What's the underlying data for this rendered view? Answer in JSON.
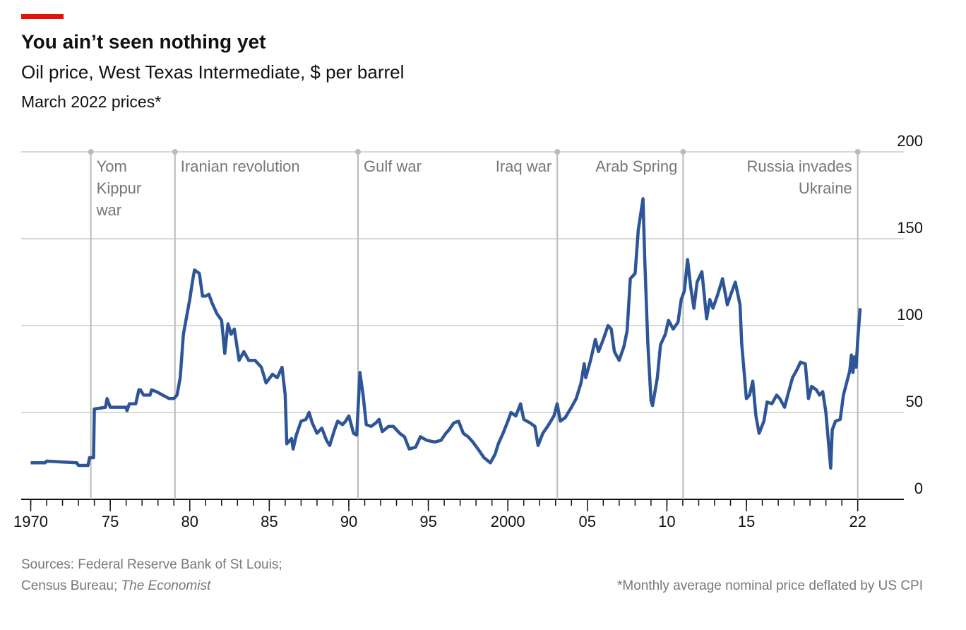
{
  "chart_data": {
    "type": "line",
    "title": "You ain’t seen nothing yet",
    "subtitle": "Oil price, West Texas Intermediate, $ per barrel",
    "note": "March 2022 prices*",
    "source_line1": "Sources: Federal Reserve Bank of St Louis;",
    "source_line2": "Census Bureau; ",
    "source_italic": "The Economist",
    "footnote": "*Monthly average nominal price deflated by US CPI",
    "color": "#2e5597",
    "x": [
      1970.0,
      1970.9,
      1971.0,
      1972.9,
      1973.0,
      1973.6,
      1973.7,
      1973.95,
      1974.0,
      1974.7,
      1974.8,
      1975.0,
      1976.0,
      1976.05,
      1976.2,
      1976.6,
      1976.8,
      1976.9,
      1977.1,
      1977.5,
      1977.6,
      1977.9,
      1978.7,
      1979.0,
      1979.2,
      1979.4,
      1979.6,
      1979.8,
      1980.0,
      1980.2,
      1980.3,
      1980.6,
      1980.8,
      1981.0,
      1981.2,
      1981.4,
      1981.7,
      1982.0,
      1982.2,
      1982.4,
      1982.6,
      1982.8,
      1983.1,
      1983.4,
      1983.7,
      1984.1,
      1984.5,
      1984.8,
      1985.2,
      1985.5,
      1985.8,
      1986.0,
      1986.1,
      1986.4,
      1986.5,
      1986.7,
      1987.0,
      1987.3,
      1987.5,
      1987.7,
      1988.0,
      1988.3,
      1988.6,
      1988.8,
      1989.1,
      1989.3,
      1989.6,
      1989.8,
      1990.0,
      1990.3,
      1990.5,
      1990.7,
      1990.9,
      1991.1,
      1991.4,
      1991.7,
      1991.9,
      1992.1,
      1992.5,
      1992.8,
      1993.2,
      1993.5,
      1993.8,
      1994.2,
      1994.5,
      1994.9,
      1995.4,
      1995.8,
      1996.1,
      1996.3,
      1996.6,
      1996.9,
      1997.2,
      1997.5,
      1997.8,
      1998.2,
      1998.5,
      1998.9,
      1999.2,
      1999.4,
      1999.7,
      2000.0,
      2000.2,
      2000.5,
      2000.8,
      2001.0,
      2001.4,
      2001.7,
      2001.9,
      2002.2,
      2002.5,
      2002.7,
      2002.9,
      2003.1,
      2003.3,
      2003.6,
      2004.0,
      2004.3,
      2004.6,
      2004.8,
      2004.9,
      2005.2,
      2005.5,
      2005.7,
      2006.0,
      2006.3,
      2006.5,
      2006.7,
      2007.0,
      2007.3,
      2007.5,
      2007.7,
      2008.0,
      2008.2,
      2008.5,
      2008.6,
      2008.8,
      2009.0,
      2009.1,
      2009.4,
      2009.6,
      2009.9,
      2010.1,
      2010.4,
      2010.7,
      2010.9,
      2011.1,
      2011.3,
      2011.5,
      2011.7,
      2011.9,
      2012.2,
      2012.5,
      2012.7,
      2012.9,
      2013.2,
      2013.5,
      2013.8,
      2014.1,
      2014.3,
      2014.6,
      2014.7,
      2015.0,
      2015.2,
      2015.4,
      2015.6,
      2015.8,
      2016.1,
      2016.3,
      2016.6,
      2016.9,
      2017.1,
      2017.4,
      2017.6,
      2017.9,
      2018.2,
      2018.4,
      2018.7,
      2018.9,
      2019.1,
      2019.4,
      2019.6,
      2019.8,
      2020.0,
      2020.3,
      2020.4,
      2020.6,
      2020.9,
      2021.1,
      2021.3,
      2021.5,
      2021.6,
      2021.7,
      2021.8,
      2021.9,
      2022.0,
      2022.15
    ],
    "values": [
      21,
      21,
      22,
      21,
      19.5,
      19.5,
      24,
      24,
      52,
      53,
      58,
      53,
      53,
      51,
      55,
      55,
      63,
      63,
      60,
      60,
      63,
      62,
      58,
      58,
      60,
      70,
      95,
      105,
      115,
      127,
      132,
      130,
      117,
      117,
      118,
      113,
      107,
      103,
      84,
      101,
      95,
      98,
      80,
      85,
      80,
      80,
      76,
      67,
      72,
      70,
      76,
      60,
      32,
      35,
      29,
      37,
      45,
      46,
      50,
      44,
      38,
      41,
      34,
      31,
      40,
      45,
      43,
      45,
      48,
      38,
      37,
      73,
      60,
      43,
      42,
      44,
      46,
      39,
      42,
      42,
      38,
      36,
      29,
      30,
      36,
      34,
      33,
      34,
      38,
      40,
      44,
      45,
      38,
      36,
      33,
      28,
      24,
      21,
      26,
      32,
      38,
      45,
      50,
      48,
      55,
      46,
      44,
      42,
      31,
      38,
      42,
      45,
      48,
      55,
      45,
      47,
      53,
      58,
      67,
      78,
      70,
      80,
      92,
      85,
      92,
      100,
      98,
      85,
      80,
      88,
      97,
      127,
      130,
      155,
      173,
      140,
      90,
      57,
      54,
      70,
      89,
      95,
      103,
      98,
      102,
      115,
      120,
      138,
      122,
      110,
      125,
      131,
      104,
      115,
      110,
      118,
      127,
      112,
      120,
      125,
      112,
      90,
      58,
      60,
      68,
      48,
      38,
      45,
      56,
      55,
      60,
      58,
      53,
      60,
      70,
      75,
      79,
      78,
      58,
      65,
      63,
      60,
      62,
      50,
      18,
      40,
      45,
      46,
      60,
      67,
      74,
      83,
      73,
      82,
      76,
      92,
      110
    ],
    "xlim": [
      1969.4,
      2024.9
    ],
    "ylim": [
      0,
      200
    ],
    "yticks": [
      0,
      50,
      100,
      150,
      200
    ],
    "xticks": [
      1970,
      {
        "value": 1975,
        "label": "75"
      },
      {
        "value": 1980,
        "label": "80"
      },
      {
        "value": 1985,
        "label": "85"
      },
      {
        "value": 1990,
        "label": "90"
      },
      {
        "value": 1995,
        "label": "95"
      },
      2000,
      {
        "value": 2005,
        "label": "05"
      },
      {
        "value": 2010,
        "label": "10"
      },
      {
        "value": 2015,
        "label": "15"
      },
      {
        "value": 2022,
        "label": "22"
      }
    ],
    "xminor_ticks": [
      1970,
      1971,
      1972,
      1973,
      1974,
      1975,
      1976,
      1977,
      1978,
      1979,
      1980,
      1981,
      1982,
      1983,
      1984,
      1985,
      1986,
      1987,
      1988,
      1989,
      1990,
      1991,
      1992,
      1993,
      1994,
      1995,
      1996,
      1997,
      1998,
      1999,
      2000,
      2001,
      2002,
      2003,
      2004,
      2005,
      2006,
      2007,
      2008,
      2009,
      2010,
      2011,
      2012,
      2013,
      2014,
      2015,
      2016,
      2017,
      2018,
      2019,
      2020,
      2021,
      2022
    ],
    "grid": true,
    "annotations": [
      {
        "x": 1973.78,
        "text": [
          "Yom",
          "Kippur",
          "war"
        ],
        "align": "right"
      },
      {
        "x": 1979.07,
        "text": [
          "Iranian revolution"
        ],
        "align": "right"
      },
      {
        "x": 1990.58,
        "text": [
          "Gulf war"
        ],
        "align": "right"
      },
      {
        "x": 2003.11,
        "text": [
          "Iraq war"
        ],
        "align": "left"
      },
      {
        "x": 2011.02,
        "text": [
          "Arab Spring"
        ],
        "align": "left"
      },
      {
        "x": 2022.0,
        "text": [
          "Russia invades",
          "Ukraine"
        ],
        "align": "left"
      }
    ]
  }
}
